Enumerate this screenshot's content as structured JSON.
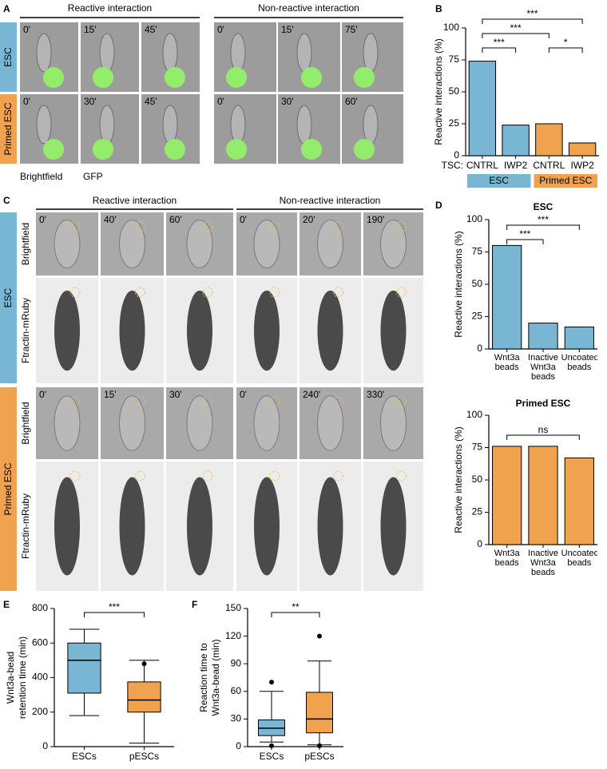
{
  "figure": {
    "panel_a": {
      "letter": "A",
      "headers": [
        "Reactive interaction",
        "Non-reactive interaction"
      ],
      "rows": [
        {
          "label": "ESC",
          "color": "#79b6d3",
          "times": [
            "0'",
            "15'",
            "45'",
            "0'",
            "15'",
            "75'"
          ]
        },
        {
          "label": "Primed ESC",
          "color": "#f0a24e",
          "times": [
            "0'",
            "30'",
            "45'",
            "0'",
            "30'",
            "60'"
          ]
        }
      ],
      "legend": [
        "Brightfield",
        "GFP"
      ]
    },
    "panel_c": {
      "letter": "C",
      "headers": [
        "Reactive interaction",
        "Non-reactive interaction"
      ],
      "groups": [
        {
          "label": "ESC",
          "color": "#79b6d3",
          "rows": [
            {
              "label": "Brightfield",
              "times": [
                "0'",
                "40'",
                "60'",
                "0'",
                "20'",
                "190'"
              ]
            },
            {
              "label": "Ftractin-mRuby"
            }
          ]
        },
        {
          "label": "Primed ESC",
          "color": "#f0a24e",
          "rows": [
            {
              "label": "Brightfield",
              "times": [
                "0'",
                "15'",
                "30'",
                "0'",
                "240'",
                "330'"
              ]
            },
            {
              "label": "Ftractin-mRuby"
            }
          ]
        }
      ]
    }
  },
  "chart_data": [
    {
      "type": "bar",
      "panel": "B",
      "ylabel": [
        "Reactive interactions (%)"
      ],
      "axis_prefix": "TSC:",
      "categories": [
        "CNTRL",
        "IWP2",
        "CNTRL",
        "IWP2"
      ],
      "values": [
        74,
        24,
        25,
        10
      ],
      "colors": [
        "#79b6d3",
        "#79b6d3",
        "#f0a24e",
        "#f0a24e"
      ],
      "ylim": [
        0,
        100
      ],
      "yticks": [
        0,
        25,
        50,
        75,
        100
      ],
      "groups": [
        {
          "label": "ESC",
          "color": "#79b6d3",
          "from": 0,
          "to": 1
        },
        {
          "label": "Primed ESC",
          "color": "#f0a24e",
          "from": 2,
          "to": 3
        }
      ],
      "annotations": [
        {
          "text": "***",
          "from": 0,
          "to": 3
        },
        {
          "text": "***",
          "from": 0,
          "to": 2
        },
        {
          "text": "***",
          "from": 0,
          "to": 1
        },
        {
          "text": "*",
          "from": 2,
          "to": 3
        }
      ]
    },
    {
      "type": "bar",
      "panel": "D",
      "title": "ESC",
      "ylabel": [
        "Reactive interactions (%)"
      ],
      "categories": [
        "Wnt3a beads",
        "Inactive Wnt3a beads",
        "Uncoated beads"
      ],
      "values": [
        80,
        20,
        17
      ],
      "colors": [
        "#79b6d3",
        "#79b6d3",
        "#79b6d3"
      ],
      "ylim": [
        0,
        100
      ],
      "yticks": [
        0,
        25,
        50,
        75,
        100
      ],
      "annotations": [
        {
          "text": "***",
          "from": 0,
          "to": 1
        },
        {
          "text": "***",
          "from": 0,
          "to": 2
        }
      ]
    },
    {
      "type": "bar",
      "title": "Primed ESC",
      "ylabel": [
        "Reactive interactions (%)"
      ],
      "categories": [
        "Wnt3a beads",
        "Inactive Wnt3a beads",
        "Uncoated beads"
      ],
      "values": [
        76,
        76,
        67
      ],
      "colors": [
        "#f0a24e",
        "#f0a24e",
        "#f0a24e"
      ],
      "ylim": [
        0,
        100
      ],
      "yticks": [
        0,
        25,
        50,
        75,
        100
      ],
      "annotations": [
        {
          "text": "ns",
          "from": 0,
          "to": 2
        }
      ]
    },
    {
      "type": "box",
      "panel": "E",
      "ylabel": [
        "Wnt3a-bead",
        "retention time (min)"
      ],
      "categories": [
        "ESCs",
        "pESCs"
      ],
      "colors": [
        "#79b6d3",
        "#f0a24e"
      ],
      "boxes": [
        {
          "whisker_low": 180,
          "q1": 310,
          "median": 500,
          "q3": 600,
          "whisker_high": 680,
          "outliers": []
        },
        {
          "whisker_low": 20,
          "q1": 200,
          "median": 270,
          "q3": 375,
          "whisker_high": 500,
          "outliers": [
            480
          ]
        }
      ],
      "ylim": [
        0,
        800
      ],
      "yticks": [
        0,
        200,
        400,
        600,
        800
      ],
      "annotations": [
        {
          "text": "***",
          "from": 0,
          "to": 1
        }
      ]
    },
    {
      "type": "box",
      "panel": "F",
      "ylabel": [
        "Reaction time to",
        "Wnt3a-bead (min)"
      ],
      "categories": [
        "ESCs",
        "pESCs"
      ],
      "colors": [
        "#79b6d3",
        "#f0a24e"
      ],
      "boxes": [
        {
          "whisker_low": 5,
          "q1": 12,
          "median": 20,
          "q3": 29,
          "whisker_high": 60,
          "outliers": [
            70,
            1
          ]
        },
        {
          "whisker_low": 2,
          "q1": 15,
          "median": 30,
          "q3": 59,
          "whisker_high": 93,
          "outliers": [
            120,
            1
          ]
        }
      ],
      "ylim": [
        0,
        150
      ],
      "yticks": [
        0,
        30,
        60,
        90,
        120,
        150
      ],
      "annotations": [
        {
          "text": "**",
          "from": 0,
          "to": 1
        }
      ]
    }
  ]
}
